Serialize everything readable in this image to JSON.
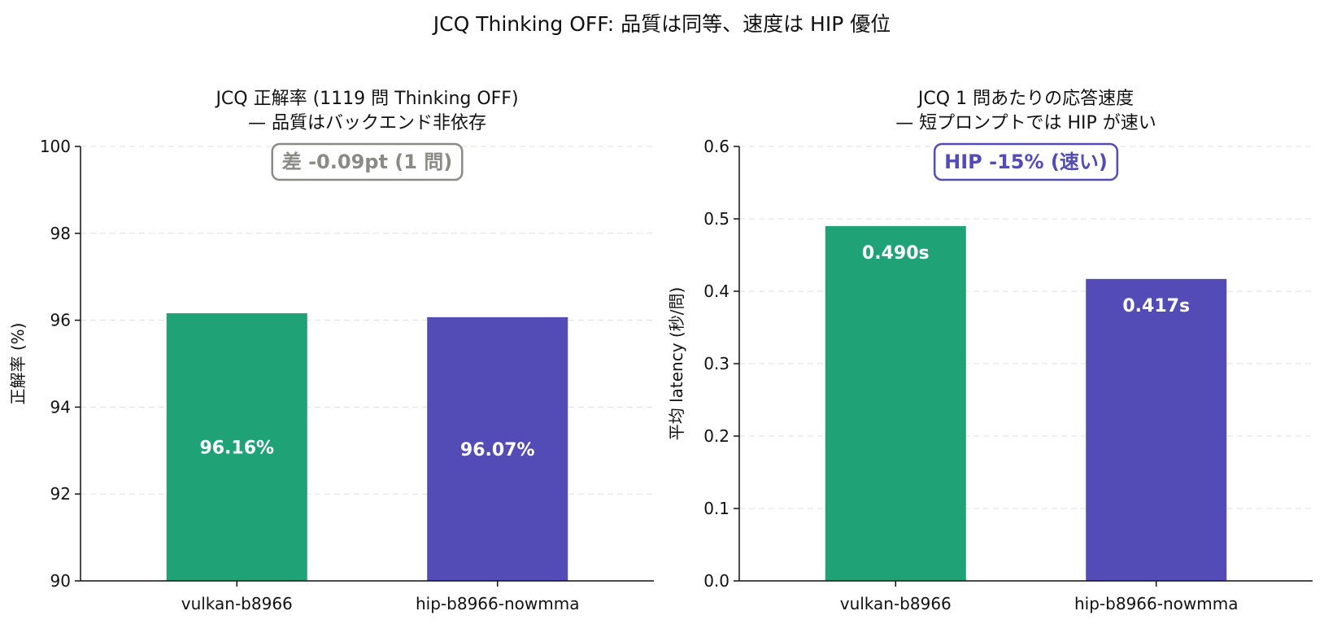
{
  "suptitle": "JCQ Thinking OFF: 品質は同等、速度は HIP 優位",
  "colors": {
    "vulkan": "#1fa276",
    "hip": "#544cb6",
    "annotation_left": "#8a8a87",
    "annotation_right": "#544cb6"
  },
  "chart_data": [
    {
      "type": "bar",
      "title_lines": [
        "JCQ 正解率 (1119 問 Thinking OFF)",
        "— 品質はバックエンド非依存"
      ],
      "categories": [
        "vulkan-b8966",
        "hip-b8966-nowmma"
      ],
      "values": [
        96.16,
        96.07
      ],
      "value_labels": [
        "96.16%",
        "96.07%"
      ],
      "ylabel": "正解率 (%)",
      "ylim": [
        90,
        100
      ],
      "yticks": [
        90,
        92,
        94,
        96,
        98,
        100
      ],
      "ytick_labels": [
        "90",
        "92",
        "94",
        "96",
        "98",
        "100"
      ],
      "grid": true,
      "annotation": "差 -0.09pt (1 問)"
    },
    {
      "type": "bar",
      "title_lines": [
        "JCQ 1 問あたりの応答速度",
        "— 短プロンプトでは HIP が速い"
      ],
      "categories": [
        "vulkan-b8966",
        "hip-b8966-nowmma"
      ],
      "values": [
        0.49,
        0.417
      ],
      "value_labels": [
        "0.490s",
        "0.417s"
      ],
      "ylabel": "平均 latency (秒/問)",
      "ylim": [
        0,
        0.6
      ],
      "yticks": [
        0,
        0.1,
        0.2,
        0.3,
        0.4,
        0.5,
        0.6
      ],
      "ytick_labels": [
        "0.0",
        "0.1",
        "0.2",
        "0.3",
        "0.4",
        "0.5",
        "0.6"
      ],
      "grid": true,
      "annotation": "HIP -15% (速い)"
    }
  ]
}
